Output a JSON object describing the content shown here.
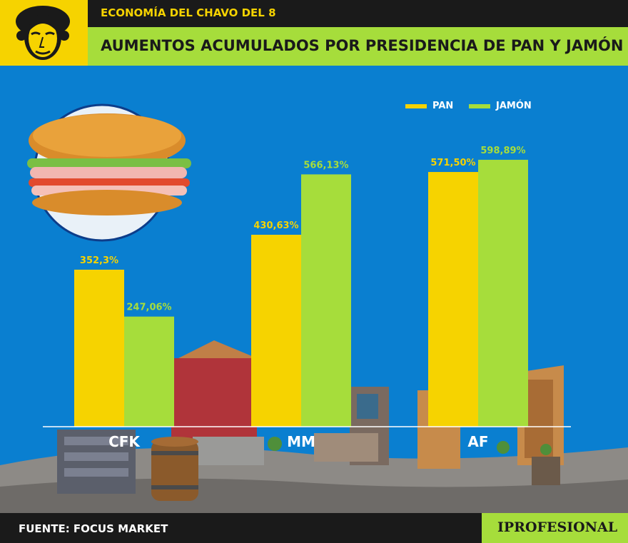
{
  "header": {
    "subtitle": "ECONOMÍA DEL CHAVO DEL 8",
    "title": "AUMENTOS ACUMULADOS POR PRESIDENCIA DE PAN Y JAMÓN"
  },
  "footer": {
    "source": "FUENTE: FOCUS MARKET",
    "brand": "IPROFESIONAL"
  },
  "colors": {
    "pan": "#f6d300",
    "jamon": "#a6dd3b",
    "header_yellow": "#f6d300",
    "header_green": "#a6dd3b",
    "background": "#0a7fd0",
    "dark": "#1a1a1a"
  },
  "chart_data": {
    "type": "bar",
    "categories": [
      "CFK",
      "MM",
      "AF"
    ],
    "series": [
      {
        "name": "PAN",
        "values": [
          352.3,
          430.63,
          571.5
        ],
        "labels": [
          "352,3%",
          "430,63%",
          "571,50%"
        ]
      },
      {
        "name": "JAMÓN",
        "values": [
          247.06,
          566.13,
          598.89
        ],
        "labels": [
          "247,06%",
          "566,13%",
          "598,89%"
        ]
      }
    ],
    "ylim": [
      0,
      650
    ],
    "legend_position": "top-right",
    "grid": false
  }
}
